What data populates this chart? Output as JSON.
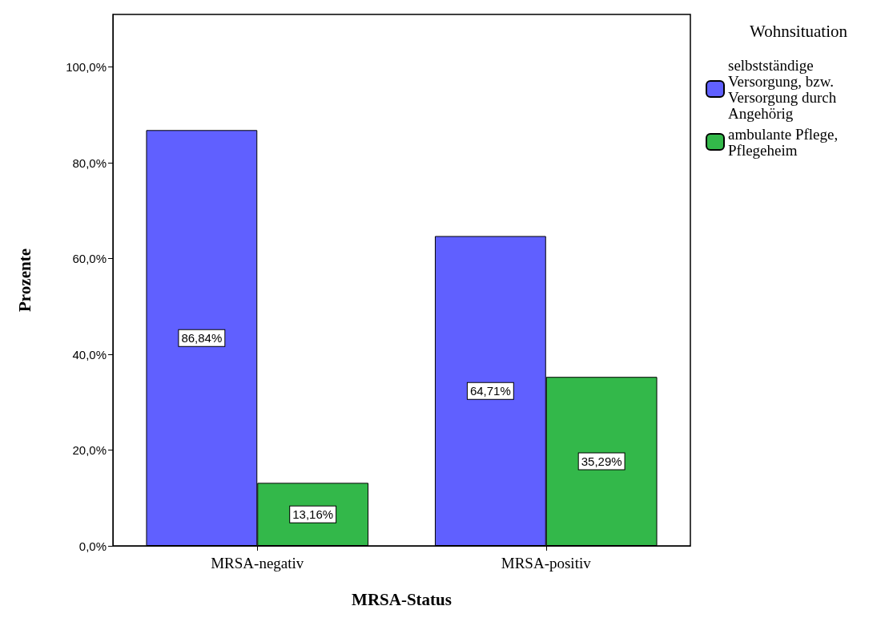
{
  "chart_data": {
    "type": "bar",
    "xlabel": "MRSA-Status",
    "ylabel": "Prozente",
    "legend_title": "Wohnsituation",
    "categories": [
      "MRSA-negativ",
      "MRSA-positiv"
    ],
    "series": [
      {
        "name": "selbstständige Versorgung, bzw. Versorgung durch Angehörig",
        "color": "#6060ff",
        "values": [
          86.84,
          64.71
        ],
        "value_labels": [
          "86,84%",
          "64,71%"
        ]
      },
      {
        "name": "ambulante Pflege, Pflegeheim",
        "color": "#33b84a",
        "values": [
          13.16,
          35.29
        ],
        "value_labels": [
          "13,16%",
          "35,29%"
        ]
      }
    ],
    "ylim": [
      0,
      111
    ],
    "yticks": [
      {
        "value": 0,
        "label": "0,0%"
      },
      {
        "value": 20,
        "label": "20,0%"
      },
      {
        "value": 40,
        "label": "40,0%"
      },
      {
        "value": 60,
        "label": "60,0%"
      },
      {
        "value": 80,
        "label": "80,0%"
      },
      {
        "value": 100,
        "label": "100,0%"
      }
    ],
    "grid": false,
    "legend": "top right"
  }
}
